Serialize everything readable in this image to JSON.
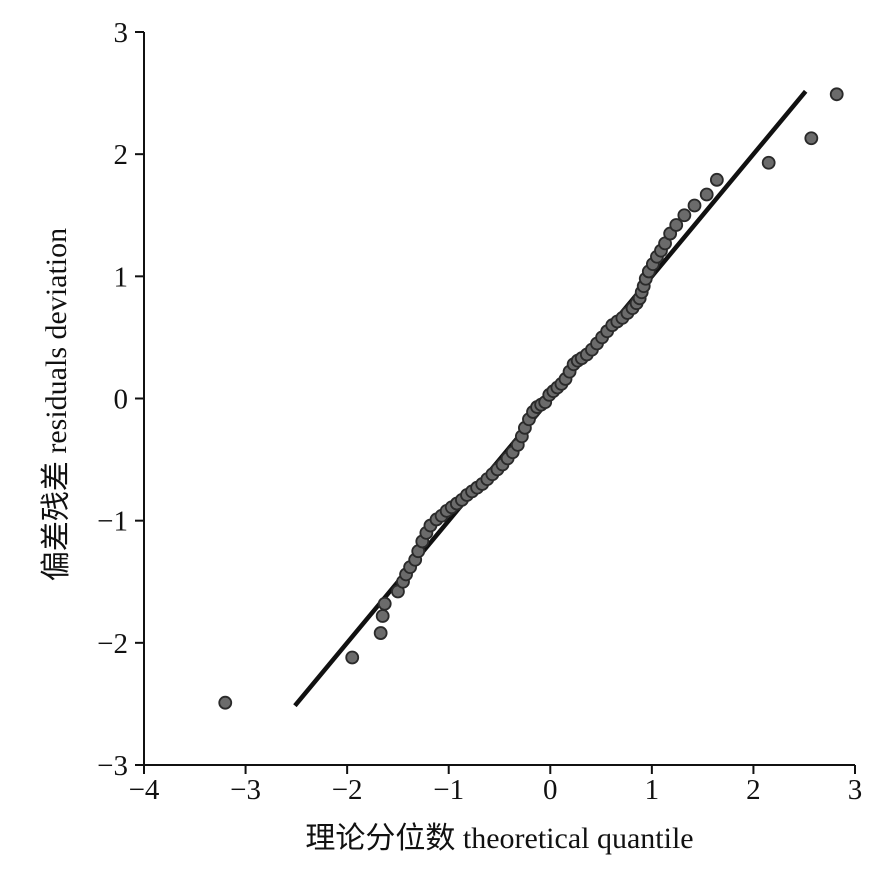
{
  "chart_data": {
    "type": "scatter",
    "xlabel": "理论分位数 theoretical quantile",
    "ylabel": "偏差残差 residuals deviation",
    "xlim": [
      -4,
      3
    ],
    "ylim": [
      -3,
      3
    ],
    "xticks": [
      -4,
      -3,
      -2,
      -1,
      0,
      1,
      2,
      3
    ],
    "yticks": [
      -3,
      -2,
      -1,
      0,
      1,
      2,
      3
    ],
    "xtick_labels": [
      "−4",
      "−3",
      "−2",
      "−1",
      "0",
      "1",
      "2",
      "3"
    ],
    "ytick_labels": [
      "−3",
      "−2",
      "−1",
      "0",
      "1",
      "2",
      "3"
    ],
    "grid": false,
    "reference_line": {
      "x": [
        -2.5,
        2.5
      ],
      "y": [
        -2.5,
        2.5
      ],
      "color": "#111111"
    },
    "point_color": "#6b6b6b",
    "points": [
      [
        -3.2,
        -2.49
      ],
      [
        -1.95,
        -2.12
      ],
      [
        -1.67,
        -1.92
      ],
      [
        -1.65,
        -1.78
      ],
      [
        -1.63,
        -1.68
      ],
      [
        -1.5,
        -1.58
      ],
      [
        -1.45,
        -1.5
      ],
      [
        -1.42,
        -1.44
      ],
      [
        -1.38,
        -1.38
      ],
      [
        -1.33,
        -1.32
      ],
      [
        -1.3,
        -1.25
      ],
      [
        -1.26,
        -1.17
      ],
      [
        -1.22,
        -1.1
      ],
      [
        -1.18,
        -1.04
      ],
      [
        -1.12,
        -0.99
      ],
      [
        -1.07,
        -0.96
      ],
      [
        -1.02,
        -0.92
      ],
      [
        -0.97,
        -0.89
      ],
      [
        -0.92,
        -0.86
      ],
      [
        -0.87,
        -0.83
      ],
      [
        -0.82,
        -0.79
      ],
      [
        -0.77,
        -0.76
      ],
      [
        -0.72,
        -0.73
      ],
      [
        -0.67,
        -0.7
      ],
      [
        -0.62,
        -0.66
      ],
      [
        -0.57,
        -0.62
      ],
      [
        -0.52,
        -0.58
      ],
      [
        -0.47,
        -0.54
      ],
      [
        -0.42,
        -0.49
      ],
      [
        -0.37,
        -0.44
      ],
      [
        -0.32,
        -0.38
      ],
      [
        -0.28,
        -0.31
      ],
      [
        -0.25,
        -0.24
      ],
      [
        -0.21,
        -0.17
      ],
      [
        -0.17,
        -0.11
      ],
      [
        -0.13,
        -0.07
      ],
      [
        -0.09,
        -0.05
      ],
      [
        -0.05,
        -0.03
      ],
      [
        -0.01,
        0.03
      ],
      [
        0.03,
        0.06
      ],
      [
        0.07,
        0.09
      ],
      [
        0.11,
        0.12
      ],
      [
        0.15,
        0.16
      ],
      [
        0.19,
        0.22
      ],
      [
        0.23,
        0.28
      ],
      [
        0.27,
        0.31
      ],
      [
        0.31,
        0.33
      ],
      [
        0.36,
        0.36
      ],
      [
        0.41,
        0.4
      ],
      [
        0.46,
        0.45
      ],
      [
        0.51,
        0.5
      ],
      [
        0.56,
        0.55
      ],
      [
        0.61,
        0.6
      ],
      [
        0.66,
        0.63
      ],
      [
        0.71,
        0.66
      ],
      [
        0.76,
        0.7
      ],
      [
        0.81,
        0.74
      ],
      [
        0.85,
        0.78
      ],
      [
        0.88,
        0.82
      ],
      [
        0.9,
        0.87
      ],
      [
        0.92,
        0.92
      ],
      [
        0.94,
        0.98
      ],
      [
        0.97,
        1.04
      ],
      [
        1.01,
        1.1
      ],
      [
        1.05,
        1.16
      ],
      [
        1.09,
        1.21
      ],
      [
        1.13,
        1.27
      ],
      [
        1.18,
        1.35
      ],
      [
        1.24,
        1.42
      ],
      [
        1.32,
        1.5
      ],
      [
        1.42,
        1.58
      ],
      [
        1.54,
        1.67
      ],
      [
        1.64,
        1.79
      ],
      [
        2.15,
        1.93
      ],
      [
        2.57,
        2.13
      ],
      [
        2.82,
        2.49
      ]
    ]
  }
}
